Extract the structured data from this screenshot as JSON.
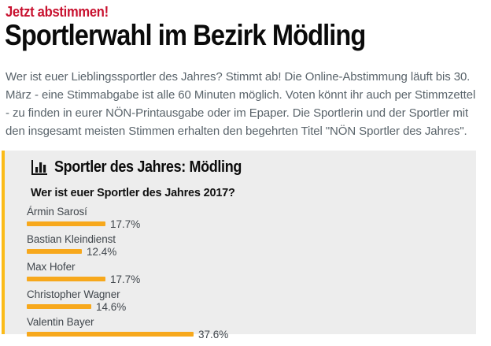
{
  "page": {
    "kicker": "Jetzt abstimmen!",
    "title": "Sportlerwahl im Bezirk Mödling",
    "intro": "Wer ist euer Lieblingssportler des Jahres? Stimmt ab! Die Online-Abstimmung läuft bis 30. März - eine Stimmabgabe ist alle 60 Minuten möglich. Voten könnt ihr auch per Stimmzettel - zu finden in eurer NÖN-Printausgabe oder im Epaper. Die Sportlerin und der Sportler mit den insgesamt meisten Stimmen erhalten den begehrten Titel \"NÖN Sportler des Jahres\"."
  },
  "poll": {
    "widget_title": "Sportler des Jahres: Mödling",
    "icon": "bar-chart-icon",
    "question": "Wer ist euer Sportler des Jahres 2017?",
    "options": [
      {
        "name": "Ármin Sarosí",
        "percent": 17.7,
        "percent_label": "17.7%"
      },
      {
        "name": "Bastian Kleindienst",
        "percent": 12.4,
        "percent_label": "12.4%"
      },
      {
        "name": "Max Hofer",
        "percent": 17.7,
        "percent_label": "17.7%"
      },
      {
        "name": "Christopher Wagner",
        "percent": 14.6,
        "percent_label": "14.6%"
      },
      {
        "name": "Valentin Bayer",
        "percent": 37.6,
        "percent_label": "37.6%"
      }
    ]
  },
  "colors": {
    "kicker_red": "#c8102e",
    "bar_orange": "#f7a81c",
    "widget_left_accent": "#fbbb18",
    "widget_background": "#ededed",
    "intro_text": "#5a646b"
  },
  "chart_data": {
    "type": "bar",
    "orientation": "horizontal",
    "title": "Sportler des Jahres: Mödling",
    "subtitle": "Wer ist euer Sportler des Jahres 2017?",
    "categories": [
      "Ármin Sarosí",
      "Bastian Kleindienst",
      "Max Hofer",
      "Christopher Wagner",
      "Valentin Bayer"
    ],
    "values": [
      17.7,
      12.4,
      17.7,
      14.6,
      37.6
    ],
    "unit": "%",
    "xlim": [
      0,
      40
    ],
    "grid": false,
    "legend": false,
    "bar_color": "#f7a81c"
  }
}
